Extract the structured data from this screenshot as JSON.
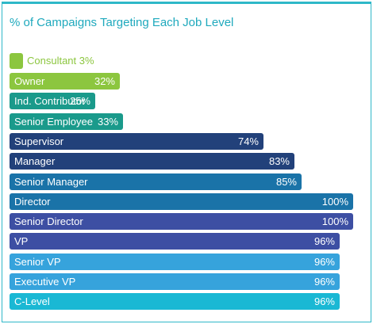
{
  "chart_data": {
    "type": "bar",
    "orientation": "horizontal",
    "title": "% of Campaigns Targeting Each Job Level",
    "xlim": [
      0,
      100
    ],
    "legend_entry": {
      "label": "Consultant",
      "value_label": "3%",
      "value": 3,
      "color": "#8cc63f"
    },
    "categories": [
      "Owner",
      "Ind. Contributor",
      "Senior Employee",
      "Supervisor",
      "Manager",
      "Senior Manager",
      "Director",
      "Senior Director",
      "VP",
      "Senior VP",
      "Executive VP",
      "C-Level"
    ],
    "values": [
      32,
      25,
      33,
      74,
      83,
      85,
      100,
      100,
      96,
      96,
      96,
      96
    ],
    "value_labels": [
      "32%",
      "25%",
      "33%",
      "74%",
      "83%",
      "85%",
      "100%",
      "100%",
      "96%",
      "96%",
      "96%",
      "96%"
    ],
    "colors": [
      "#8cc63f",
      "#1a9a8b",
      "#1a9a8b",
      "#22417a",
      "#22417a",
      "#1a73a8",
      "#1a73a8",
      "#3d4fa3",
      "#3d4fa3",
      "#36a3dc",
      "#36a3dc",
      "#1ab8d4"
    ]
  }
}
